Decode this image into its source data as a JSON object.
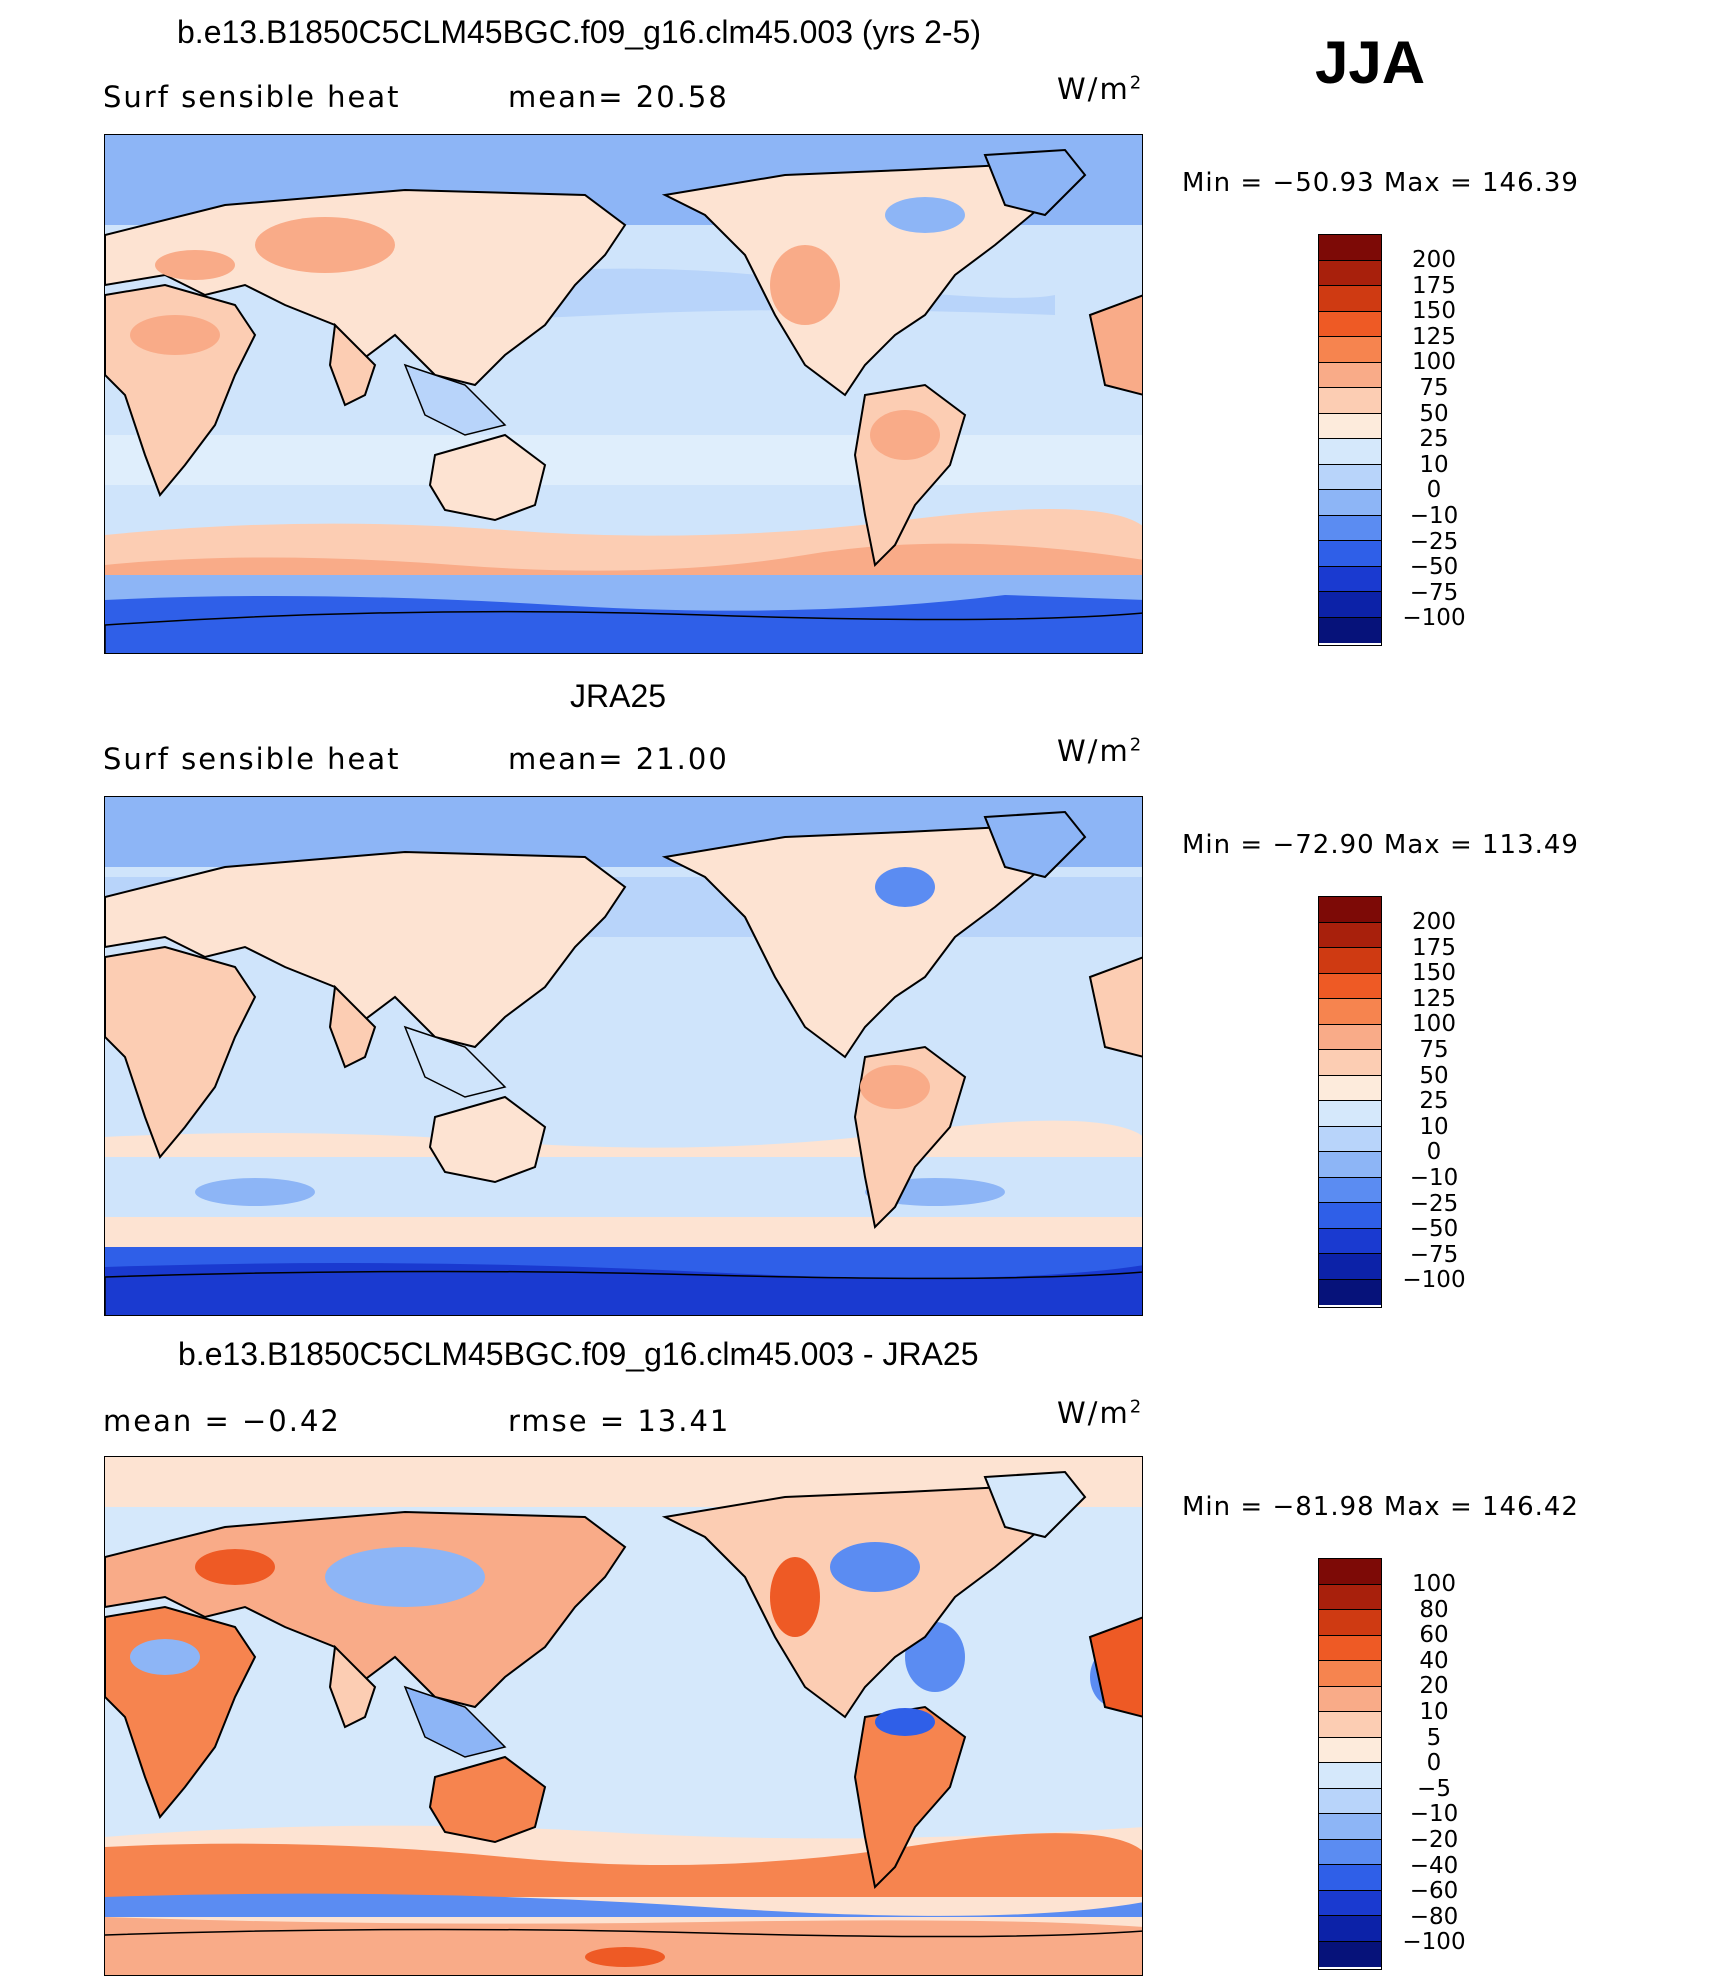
{
  "season": "JJA",
  "colors": {
    "deep_blue": "#2e63f0",
    "mid_blue": "#6f9df5",
    "light_blue": "#cfe4fb",
    "light_cream": "#fde3d2",
    "salmon": "#f7a98a",
    "red_orange": "#ee6a3f",
    "coast": "#000000"
  },
  "panel1": {
    "title": "b.e13.B1850C5CLM45BGC.f09_g16.clm45.003 (yrs 2-5)",
    "left_label": "Surf  sensible  heat",
    "mid_label": "mean=   20.58",
    "units": "W/m",
    "units_exp": "2",
    "minmax": "Min  =  −50.93  Max  =  146.39",
    "colorbar": [
      "200",
      "175",
      "150",
      "125",
      "100",
      "75",
      "50",
      "25",
      "10",
      "0",
      "−10",
      "−25",
      "−50",
      "−75",
      "−100"
    ]
  },
  "panel2": {
    "title": "JRA25",
    "left_label": "Surf  sensible  heat",
    "mid_label": "mean=   21.00",
    "units": "W/m",
    "units_exp": "2",
    "minmax": "Min  =  −72.90  Max  =  113.49",
    "colorbar": [
      "200",
      "175",
      "150",
      "125",
      "100",
      "75",
      "50",
      "25",
      "10",
      "0",
      "−10",
      "−25",
      "−50",
      "−75",
      "−100"
    ]
  },
  "panel3": {
    "title": "b.e13.B1850C5CLM45BGC.f09_g16.clm45.003 - JRA25",
    "left_label": "mean  =     −0.42",
    "mid_label": "rmse  =     13.41",
    "units": "W/m",
    "units_exp": "2",
    "minmax": "Min  =  −81.98  Max  =  146.42",
    "colorbar": [
      "100",
      "80",
      "60",
      "40",
      "20",
      "10",
      "5",
      "0",
      "−5",
      "−10",
      "−20",
      "−40",
      "−60",
      "−80",
      "−100"
    ]
  },
  "abs_colorbar_colors": [
    "#7d0a06",
    "#a8200c",
    "#cf3a12",
    "#ee5a25",
    "#f6844f",
    "#f9ab88",
    "#fccdb3",
    "#fdebdc",
    "#d5e8fb",
    "#b8d4fa",
    "#8db5f6",
    "#5b8cf2",
    "#2f5fe8",
    "#1a3ad0",
    "#0c22a8",
    "#06127a"
  ],
  "diff_colorbar_colors": [
    "#7d0a06",
    "#a8200c",
    "#cf3a12",
    "#ee5a25",
    "#f6844f",
    "#f9ab88",
    "#fccdb3",
    "#fdebdc",
    "#d5e8fb",
    "#b8d4fa",
    "#8db5f6",
    "#5b8cf2",
    "#2f5fe8",
    "#1a3ad0",
    "#0c22a8",
    "#06127a"
  ]
}
